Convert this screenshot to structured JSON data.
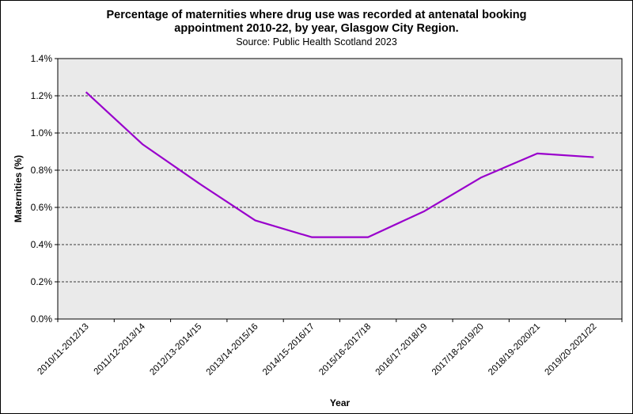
{
  "chart_data": {
    "type": "line",
    "title_line1": "Percentage of maternities where drug use was recorded at antenatal booking",
    "title_line2": "appointment 2010-22, by year, Glasgow City Region.",
    "subtitle": "Source: Public Health Scotland 2023",
    "xlabel": "Year",
    "ylabel": "Maternities (%)",
    "ylim": [
      0,
      1.4
    ],
    "yticks": [
      "0.0%",
      "0.2%",
      "0.4%",
      "0.6%",
      "0.8%",
      "1.0%",
      "1.2%",
      "1.4%"
    ],
    "grid": true,
    "categories": [
      "2010/11-2012/13",
      "2011/12-2013/14",
      "2012/13-2014/15",
      "2013/14-2015/16",
      "2014/15-2016/17",
      "2015/16-2017/18",
      "2016/17-2018/19",
      "2017/18-2019/20",
      "2018/19-2020/21",
      "2019/20-2021/22"
    ],
    "series": [
      {
        "name": "Glasgow City Region",
        "color": "#9900CC",
        "values": [
          1.22,
          0.94,
          0.73,
          0.53,
          0.44,
          0.44,
          0.58,
          0.76,
          0.89,
          0.87
        ]
      }
    ],
    "plot_background": "#EAEAEA"
  }
}
